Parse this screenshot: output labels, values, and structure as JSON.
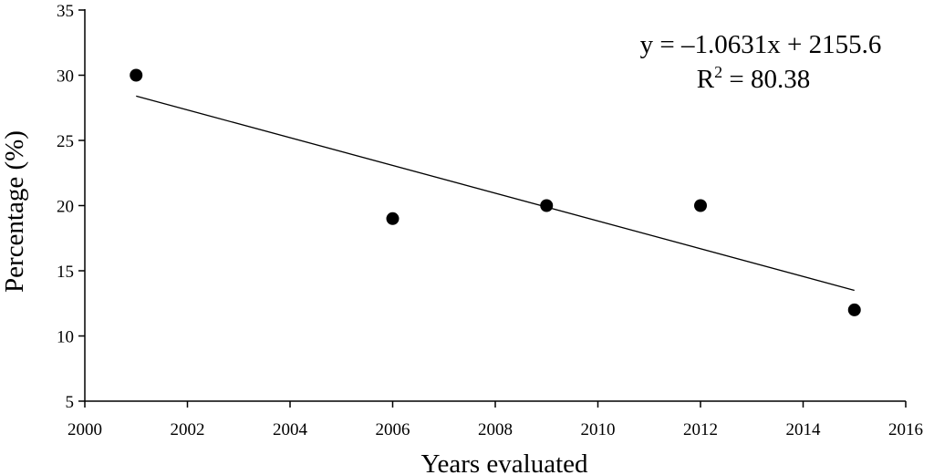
{
  "chart_data": {
    "type": "scatter",
    "xlabel": "Years evaluated",
    "ylabel": "Percentage (%)",
    "xlim": [
      2000,
      2016
    ],
    "ylim": [
      5,
      35
    ],
    "x_ticks": [
      "2000",
      "2002",
      "2004",
      "2006",
      "2008",
      "2010",
      "2012",
      "2014",
      "2016"
    ],
    "y_ticks": [
      "5",
      "10",
      "15",
      "20",
      "25",
      "30",
      "35"
    ],
    "points": [
      {
        "x": 2001,
        "y": 30
      },
      {
        "x": 2006,
        "y": 19
      },
      {
        "x": 2009,
        "y": 20
      },
      {
        "x": 2012,
        "y": 20
      },
      {
        "x": 2015,
        "y": 12
      }
    ],
    "trendline": {
      "x": [
        2001,
        2015
      ],
      "y": [
        28.4,
        13.5
      ]
    },
    "equation": "y = –1.0631x + 2155.6",
    "r2_label": "R",
    "r2_sup": "2",
    "r2_value": " = 80.38",
    "grid": false,
    "point_color": "#000000",
    "line_color": "#000000"
  }
}
